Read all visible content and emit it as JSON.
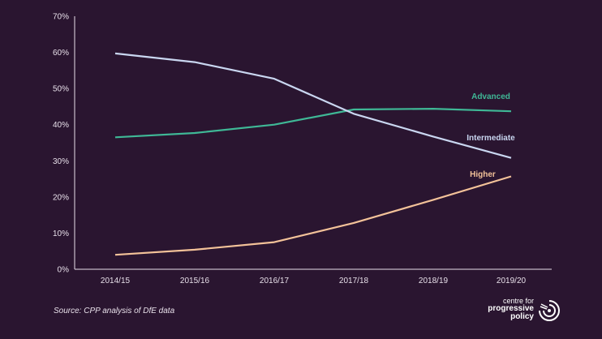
{
  "chart_data": {
    "type": "line",
    "categories": [
      "2014/15",
      "2015/16",
      "2016/17",
      "2017/18",
      "2018/19",
      "2019/20"
    ],
    "series": [
      {
        "name": "Advanced",
        "values": [
          36.5,
          37.7,
          40.0,
          44.2,
          44.4,
          43.7
        ],
        "color": "#3fb896"
      },
      {
        "name": "Intermediate",
        "values": [
          59.7,
          57.3,
          52.7,
          43.0,
          36.7,
          30.8
        ],
        "color": "#c9d6f0"
      },
      {
        "name": "Higher",
        "values": [
          4.0,
          5.4,
          7.5,
          12.8,
          19.2,
          25.7
        ],
        "color": "#f3c299"
      }
    ],
    "yticks": [
      "0%",
      "10%",
      "20%",
      "30%",
      "40%",
      "50%",
      "60%",
      "70%"
    ],
    "ylim": [
      0,
      70
    ],
    "grid": false,
    "title": "",
    "xlabel": "",
    "ylabel": ""
  },
  "source": "Source: CPP analysis of DfE data",
  "logo": {
    "line1": "centre for",
    "line2": "progressive",
    "line3": "policy"
  }
}
